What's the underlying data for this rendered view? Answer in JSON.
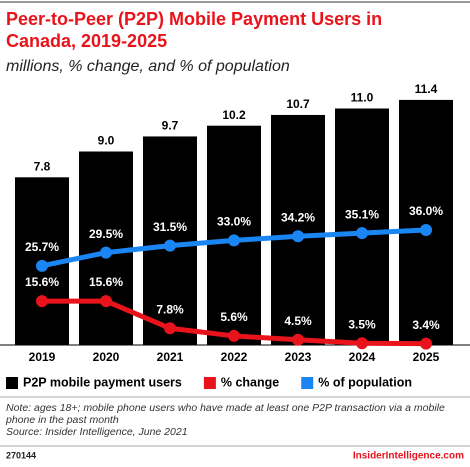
{
  "chart_data": {
    "type": "bar",
    "title": [
      "Peer-to-Peer (P2P) Mobile Payment Users in",
      "Canada, 2019-2025"
    ],
    "subtitle": "millions, % change, and % of population",
    "categories": [
      "2019",
      "2020",
      "2021",
      "2022",
      "2023",
      "2024",
      "2025"
    ],
    "series": [
      {
        "name": "P2P mobile payment users",
        "type": "bar",
        "color": "#000000",
        "values": [
          7.8,
          9.0,
          9.7,
          10.2,
          10.7,
          11.0,
          11.4
        ],
        "value_labels": [
          "7.8",
          "9.0",
          "9.7",
          "10.2",
          "10.7",
          "11.0",
          "11.4"
        ]
      },
      {
        "name": "% change",
        "type": "line",
        "axis": "y2",
        "color": "#e8131b",
        "values": [
          15.6,
          15.6,
          7.8,
          5.6,
          4.5,
          3.5,
          3.4
        ],
        "value_labels": [
          "15.6%",
          "15.6%",
          "7.8%",
          "5.6%",
          "4.5%",
          "3.5%",
          "3.4%"
        ]
      },
      {
        "name": "% of population",
        "type": "line",
        "axis": "y2",
        "color": "#1a86f4",
        "values": [
          25.7,
          29.5,
          31.5,
          33.0,
          34.2,
          35.1,
          36.0
        ],
        "value_labels": [
          "25.7%",
          "29.5%",
          "31.5%",
          "33.0%",
          "34.2%",
          "35.1%",
          "36.0%"
        ]
      }
    ],
    "ylim": [
      0,
      12
    ],
    "y2lim": [
      3,
      77
    ],
    "legend": "bottom",
    "note": "Note: ages 18+; mobile phone users who have made at least one P2P transaction via a mobile phone in the past month",
    "source": "Source: Insider Intelligence, June 2021",
    "id": "270144",
    "brand": "InsiderIntelligence.com"
  }
}
